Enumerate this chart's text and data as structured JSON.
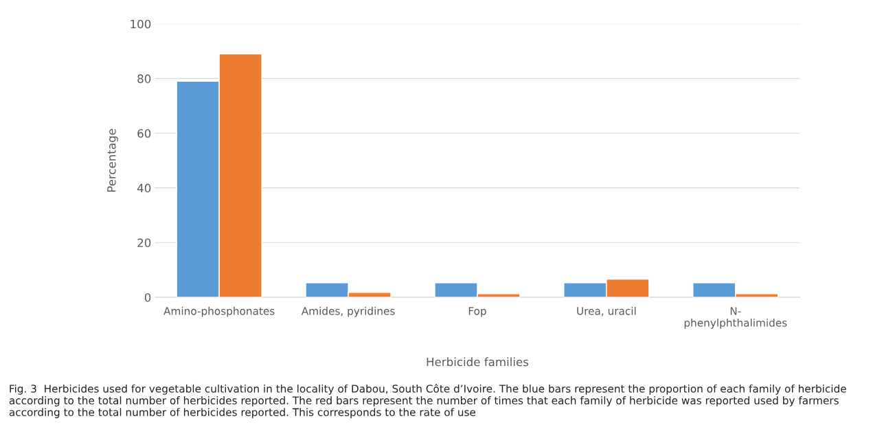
{
  "chart_data": {
    "type": "bar",
    "xlabel": "Herbicide families",
    "ylabel": "Percentage",
    "categories": [
      "Amino-phosphonates",
      "Amides, pyridines",
      "Fop",
      "Urea, uracil",
      "N-\nphenylphthalimides"
    ],
    "series": [
      {
        "color": "#5b9bd5",
        "values": [
          79,
          5.3,
          5.3,
          5.3,
          5.3
        ]
      },
      {
        "color": "#ed7d31",
        "values": [
          89,
          1.8,
          1.3,
          6.6,
          1.3
        ]
      }
    ],
    "ylim": [
      0,
      100
    ],
    "yticks": [
      0,
      20,
      40,
      60,
      80,
      100
    ],
    "grid": "y",
    "legend": false,
    "annotations": [
      "Fig. 3  Herbicides used for vegetable cultivation in the locality of Dabou, South Côte d’Ivoire. The blue bars represent the proportion of each family of herbicide according to the total number of herbicides reported. The red bars represent the number of times that each family of herbicide was reported used by farmers according to the total number of herbicides reported. This corresponds to the rate of use"
    ]
  }
}
